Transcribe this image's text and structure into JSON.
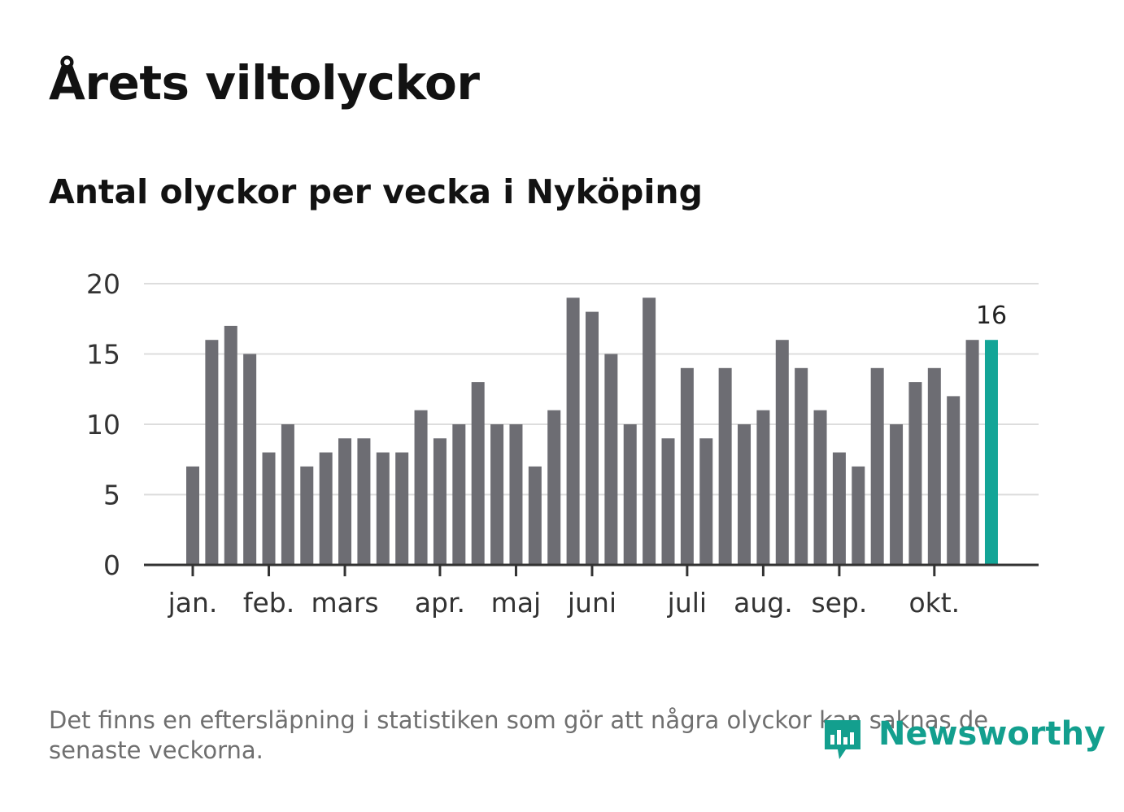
{
  "title": "Årets viltolyckor",
  "subtitle": "Antal olyckor per vecka i Nyköping",
  "footnote": "Det finns en eftersläpning i statistiken som gör att några olyckor kan saknas de senaste veckorna.",
  "logo": {
    "text": "Newsworthy",
    "icon": "bar-chart-speech-bubble-icon"
  },
  "colors": {
    "bar": "#6d6d73",
    "highlight": "#13a597",
    "grid": "#dddddd",
    "axis": "#333333",
    "text": "#333333"
  },
  "chart_data": {
    "type": "bar",
    "title": "Antal olyckor per vecka i Nyköping",
    "xlabel": "",
    "ylabel": "",
    "ylim": [
      0,
      20
    ],
    "yticks": [
      0,
      5,
      10,
      15,
      20
    ],
    "grid": true,
    "x": [
      1,
      2,
      3,
      4,
      5,
      6,
      7,
      8,
      9,
      10,
      11,
      12,
      13,
      14,
      15,
      16,
      17,
      18,
      19,
      20,
      21,
      22,
      23,
      24,
      25,
      26,
      27,
      28,
      29,
      30,
      31,
      32,
      33,
      34,
      35,
      36,
      37,
      38,
      39,
      40,
      41,
      42,
      43
    ],
    "values": [
      7,
      16,
      17,
      15,
      8,
      10,
      7,
      8,
      9,
      9,
      8,
      8,
      11,
      9,
      10,
      13,
      10,
      10,
      7,
      11,
      19,
      18,
      15,
      10,
      19,
      9,
      14,
      9,
      14,
      10,
      11,
      16,
      14,
      11,
      8,
      7,
      14,
      10,
      13,
      14,
      12,
      16,
      16
    ],
    "highlight_index": 42,
    "highlight_label": "16",
    "month_ticks": [
      {
        "label": "jan.",
        "week": 1
      },
      {
        "label": "feb.",
        "week": 5
      },
      {
        "label": "mars",
        "week": 9
      },
      {
        "label": "apr.",
        "week": 14
      },
      {
        "label": "maj",
        "week": 18
      },
      {
        "label": "juni",
        "week": 22
      },
      {
        "label": "juli",
        "week": 27
      },
      {
        "label": "aug.",
        "week": 31
      },
      {
        "label": "sep.",
        "week": 35
      },
      {
        "label": "okt.",
        "week": 40
      }
    ]
  }
}
